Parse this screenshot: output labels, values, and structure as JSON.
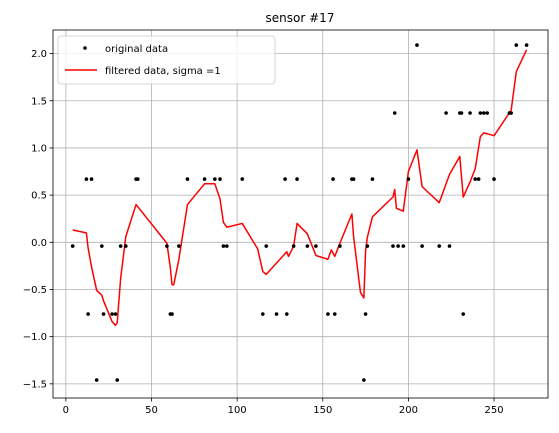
{
  "chart_data": {
    "type": "line",
    "title": "sensor #17",
    "xlabel": "",
    "ylabel": "",
    "xlim": [
      -7.5,
      281.5
    ],
    "ylim": [
      -1.65,
      2.25
    ],
    "x_ticks": [
      0,
      50,
      100,
      150,
      200,
      250
    ],
    "y_ticks": [
      -1.5,
      -1.0,
      -0.5,
      0.0,
      0.5,
      1.0,
      1.5,
      2.0
    ],
    "x_tick_labels": [
      "0",
      "50",
      "100",
      "150",
      "200",
      "250"
    ],
    "y_tick_labels": [
      "−1.5",
      "−1.0",
      "−0.5",
      "0.0",
      "0.5",
      "1.0",
      "1.5",
      "2.0"
    ],
    "grid": true,
    "legend_position": "top-left",
    "series": [
      {
        "name": "original data",
        "style": "points",
        "color": "#000000",
        "points": [
          [
            4,
            -0.04
          ],
          [
            12,
            0.67
          ],
          [
            13,
            -0.76
          ],
          [
            15,
            0.67
          ],
          [
            18,
            -1.46
          ],
          [
            21,
            -0.04
          ],
          [
            22,
            -0.76
          ],
          [
            27,
            -0.76
          ],
          [
            29,
            -0.76
          ],
          [
            30,
            -1.46
          ],
          [
            32,
            -0.04
          ],
          [
            35,
            -0.04
          ],
          [
            41,
            0.67
          ],
          [
            42,
            0.67
          ],
          [
            59,
            -0.04
          ],
          [
            61,
            -0.76
          ],
          [
            62,
            -0.76
          ],
          [
            66,
            -0.04
          ],
          [
            71,
            0.67
          ],
          [
            81,
            0.67
          ],
          [
            87,
            0.67
          ],
          [
            90,
            0.67
          ],
          [
            92,
            -0.04
          ],
          [
            94,
            -0.04
          ],
          [
            103,
            0.67
          ],
          [
            115,
            -0.76
          ],
          [
            117,
            -0.04
          ],
          [
            123,
            -0.76
          ],
          [
            128,
            0.67
          ],
          [
            129,
            -0.76
          ],
          [
            133,
            -0.04
          ],
          [
            135,
            0.67
          ],
          [
            141,
            -0.04
          ],
          [
            146,
            -0.04
          ],
          [
            153,
            -0.76
          ],
          [
            156,
            0.67
          ],
          [
            157,
            -0.76
          ],
          [
            160,
            -0.04
          ],
          [
            167,
            0.67
          ],
          [
            168,
            0.67
          ],
          [
            174,
            -1.46
          ],
          [
            175,
            -0.76
          ],
          [
            176,
            -0.04
          ],
          [
            179,
            0.67
          ],
          [
            191,
            -0.04
          ],
          [
            192,
            1.37
          ],
          [
            194,
            -0.04
          ],
          [
            197,
            -0.04
          ],
          [
            200,
            0.67
          ],
          [
            205,
            2.09
          ],
          [
            208,
            -0.04
          ],
          [
            218,
            -0.04
          ],
          [
            222,
            1.37
          ],
          [
            224,
            -0.04
          ],
          [
            230,
            1.37
          ],
          [
            231,
            1.37
          ],
          [
            232,
            -0.76
          ],
          [
            236,
            1.37
          ],
          [
            239,
            0.67
          ],
          [
            241,
            0.67
          ],
          [
            242,
            1.37
          ],
          [
            244,
            1.37
          ],
          [
            246,
            1.37
          ],
          [
            250,
            0.67
          ],
          [
            259,
            1.37
          ],
          [
            260,
            1.37
          ],
          [
            263,
            2.09
          ],
          [
            269,
            2.09
          ]
        ]
      },
      {
        "name": "filtered data, sigma =1",
        "style": "line",
        "color": "#ff0000",
        "points": [
          [
            4,
            0.13
          ],
          [
            12,
            0.1
          ],
          [
            13,
            -0.06
          ],
          [
            15,
            -0.26
          ],
          [
            18,
            -0.51
          ],
          [
            21,
            -0.56
          ],
          [
            22,
            -0.62
          ],
          [
            27,
            -0.84
          ],
          [
            29,
            -0.88
          ],
          [
            30,
            -0.85
          ],
          [
            32,
            -0.38
          ],
          [
            35,
            0.06
          ],
          [
            41,
            0.4
          ],
          [
            59,
            -0.01
          ],
          [
            61,
            -0.27
          ],
          [
            62,
            -0.45
          ],
          [
            63,
            -0.45
          ],
          [
            66,
            -0.18
          ],
          [
            71,
            0.4
          ],
          [
            81,
            0.62
          ],
          [
            87,
            0.62
          ],
          [
            90,
            0.46
          ],
          [
            92,
            0.21
          ],
          [
            94,
            0.16
          ],
          [
            103,
            0.2
          ],
          [
            112,
            -0.07
          ],
          [
            115,
            -0.31
          ],
          [
            117,
            -0.34
          ],
          [
            128,
            -0.12
          ],
          [
            129,
            -0.1
          ],
          [
            130,
            -0.15
          ],
          [
            133,
            -0.04
          ],
          [
            135,
            0.2
          ],
          [
            141,
            0.09
          ],
          [
            146,
            -0.14
          ],
          [
            153,
            -0.18
          ],
          [
            155,
            -0.08
          ],
          [
            157,
            -0.15
          ],
          [
            160,
            -0.01
          ],
          [
            167,
            0.3
          ],
          [
            168,
            0.06
          ],
          [
            172,
            -0.53
          ],
          [
            174,
            -0.59
          ],
          [
            175,
            -0.09
          ],
          [
            176,
            0.05
          ],
          [
            179,
            0.27
          ],
          [
            191,
            0.48
          ],
          [
            192,
            0.56
          ],
          [
            193,
            0.36
          ],
          [
            197,
            0.33
          ],
          [
            200,
            0.75
          ],
          [
            205,
            0.98
          ],
          [
            208,
            0.59
          ],
          [
            218,
            0.42
          ],
          [
            224,
            0.72
          ],
          [
            230,
            0.91
          ],
          [
            232,
            0.48
          ],
          [
            236,
            0.64
          ],
          [
            239,
            0.78
          ],
          [
            242,
            1.12
          ],
          [
            244,
            1.16
          ],
          [
            250,
            1.13
          ],
          [
            260,
            1.4
          ],
          [
            263,
            1.81
          ],
          [
            269,
            2.04
          ]
        ]
      }
    ]
  }
}
